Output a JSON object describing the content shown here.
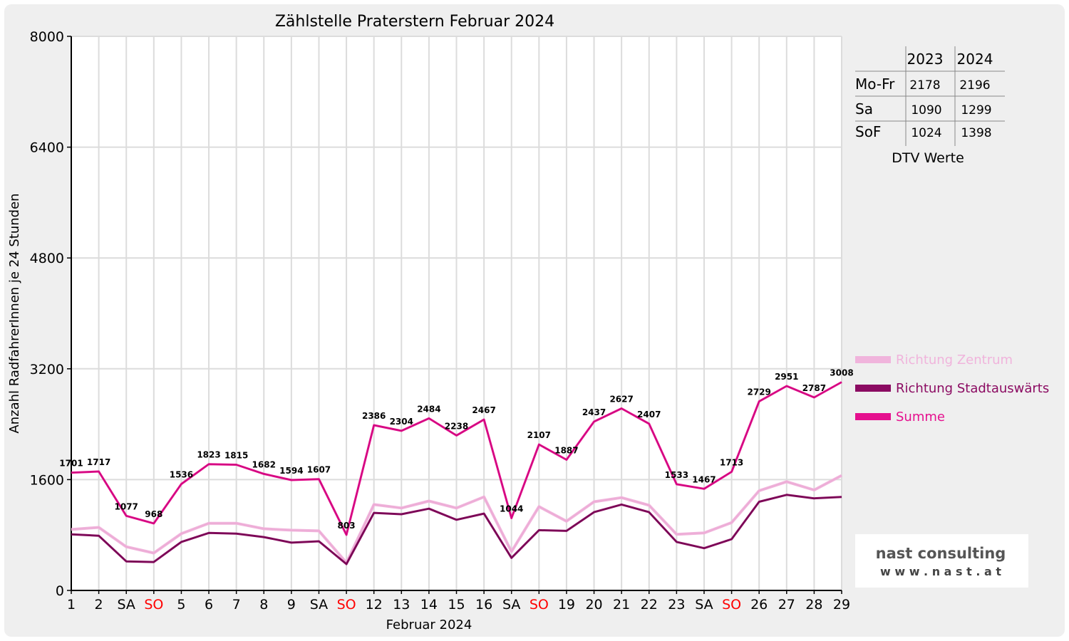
{
  "chart_data": {
    "type": "line",
    "title": "Zählstelle Praterstern Februar 2024",
    "xlabel": "Februar 2024",
    "ylabel": "Anzahl RadfahrerInnen je 24 Stunden",
    "ylim": [
      0,
      8000
    ],
    "y_ticks": [
      "0",
      "1600",
      "3200",
      "4800",
      "6400",
      "8000"
    ],
    "grid": true,
    "legend_position": "right",
    "x_labels": [
      "1",
      "2",
      "SA",
      "SO",
      "5",
      "6",
      "7",
      "8",
      "9",
      "SA",
      "SO",
      "12",
      "13",
      "14",
      "15",
      "16",
      "SA",
      "SO",
      "19",
      "20",
      "21",
      "22",
      "23",
      "SA",
      "SO",
      "26",
      "27",
      "28",
      "29"
    ],
    "sunday_label_color": "#ff0000",
    "series": [
      {
        "name": "Richtung Zentrum",
        "color": "#f0b4dc",
        "values": [
          880,
          910,
          630,
          540,
          820,
          970,
          970,
          890,
          870,
          860,
          400,
          1240,
          1190,
          1290,
          1190,
          1350,
          560,
          1210,
          1000,
          1280,
          1340,
          1230,
          810,
          830,
          980,
          1440,
          1570,
          1450,
          1660
        ]
      },
      {
        "name": "Richtung Stadtauswärts",
        "color": "#8b0b62",
        "values": [
          810,
          790,
          420,
          410,
          700,
          830,
          820,
          770,
          690,
          710,
          380,
          1120,
          1100,
          1180,
          1020,
          1110,
          470,
          870,
          860,
          1130,
          1240,
          1130,
          700,
          610,
          740,
          1280,
          1380,
          1330,
          1350
        ]
      },
      {
        "name": "Summe",
        "color": "#e5108e",
        "values": [
          1701,
          1717,
          1077,
          968,
          1536,
          1823,
          1815,
          1682,
          1594,
          1607,
          803,
          2386,
          2304,
          2484,
          2238,
          2467,
          1044,
          2107,
          1887,
          2437,
          2627,
          2407,
          1533,
          1467,
          1713,
          2729,
          2951,
          2787,
          3008
        ]
      }
    ],
    "data_labels": [
      "1701",
      "1717",
      "1077",
      "968",
      "1536",
      "1823",
      "1815",
      "1682",
      "1594",
      "1607",
      "803",
      "2386",
      "2304",
      "2484",
      "2238",
      "2467",
      "1044",
      "2107",
      "1887",
      "2437",
      "2627",
      "2407",
      "1533",
      "1467",
      "1713",
      "2729",
      "2951",
      "2787",
      "3008"
    ]
  },
  "dtv_table": {
    "header": [
      "",
      "2023",
      "2024"
    ],
    "rows": [
      {
        "label": "Mo-Fr",
        "v2023": "2178",
        "v2024": "2196"
      },
      {
        "label": "Sa",
        "v2023": "1090",
        "v2024": "1299"
      },
      {
        "label": "SoF",
        "v2023": "1024",
        "v2024": "1398"
      }
    ],
    "caption": "DTV Werte"
  },
  "logo": {
    "name": "nast consulting",
    "url": "w w w . n a s t . a t"
  }
}
